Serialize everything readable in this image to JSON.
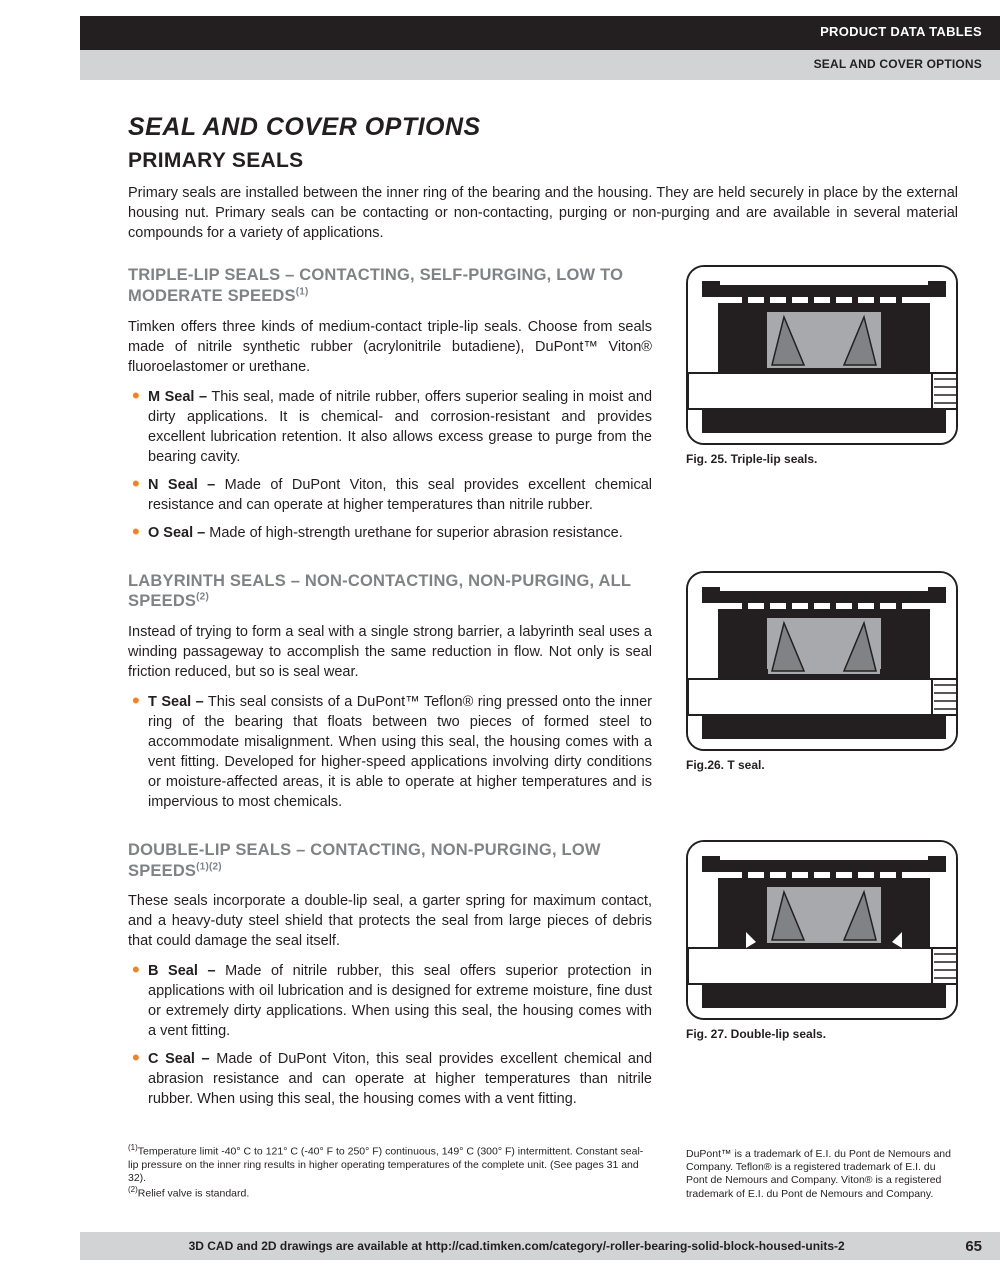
{
  "header": {
    "black_bar": "PRODUCT DATA TABLES",
    "gray_bar": "SEAL AND COVER OPTIONS"
  },
  "title": "SEAL AND COVER OPTIONS",
  "subtitle": "PRIMARY SEALS",
  "intro": "Primary seals are installed between the inner ring of the bearing and the housing. They are held securely in place by the external housing nut. Primary seals can be contacting or non-contacting, purging or non-purging and are available in several material compounds for a variety of applications.",
  "sections": [
    {
      "heading": "TRIPLE-LIP SEALS – CONTACTING, SELF-PURGING, LOW TO MODERATE SPEEDS",
      "heading_sup": "(1)",
      "para": "Timken offers three kinds of medium-contact triple-lip seals. Choose from seals made of nitrile synthetic rubber (acrylonitrile butadiene), DuPont™ Viton® fluoroelastomer or urethane.",
      "bullets": [
        {
          "label": "M Seal –",
          "text": " This seal, made of nitrile rubber, offers superior sealing in moist and dirty applications. It is chemical- and corrosion-resistant and provides excellent lubrication retention. It also allows excess grease to purge from the bearing cavity."
        },
        {
          "label": "N Seal –",
          "text": " Made of DuPont Viton, this seal provides excellent chemical resistance and can operate at higher temperatures than nitrile rubber."
        },
        {
          "label": "O Seal –",
          "text": " Made of high-strength urethane for superior abrasion resistance."
        }
      ],
      "fig_caption": "Fig. 25. Triple-lip seals."
    },
    {
      "heading": "LABYRINTH SEALS – NON-CONTACTING, NON-PURGING, ALL SPEEDS",
      "heading_sup": "(2)",
      "para": "Instead of trying to form a seal with a single strong barrier, a labyrinth seal uses a winding passageway to accomplish the same reduction in flow. Not only is seal friction reduced, but so is seal wear.",
      "bullets": [
        {
          "label": "T Seal –",
          "text": " This seal consists of a DuPont™ Teflon® ring pressed onto the inner ring of the bearing that floats between two pieces of formed steel to accommodate misalignment. When using this seal, the housing comes with a vent fitting. Developed for higher-speed applications involving dirty conditions or moisture-affected areas, it is able to operate at higher temperatures and is impervious to most chemicals."
        }
      ],
      "fig_caption": "Fig.26. T seal."
    },
    {
      "heading": "DOUBLE-LIP SEALS – CONTACTING, NON-PURGING, LOW SPEEDS",
      "heading_sup": "(1)(2)",
      "para": "These seals incorporate a double-lip seal, a garter spring for maximum contact, and a heavy-duty steel shield that protects the seal from large pieces of debris that could damage the seal itself.",
      "bullets": [
        {
          "label": "B Seal –",
          "text": " Made of nitrile rubber, this seal offers superior protection in applications with oil lubrication and is designed for extreme moisture, fine dust or extremely dirty applications. When using this seal, the housing comes with a vent fitting."
        },
        {
          "label": "C Seal –",
          "text": " Made of DuPont Viton, this seal provides excellent chemical and abrasion resistance and can operate at higher temperatures than nitrile rubber. When using this seal, the housing comes with a vent fitting."
        }
      ],
      "fig_caption": "Fig. 27. Double-lip seals."
    }
  ],
  "footnotes": [
    {
      "sup": "(1)",
      "text": "Temperature limit -40° C to 121° C (-40° F to 250° F) continuous, 149° C (300° F) intermittent. Constant seal-lip pressure on the inner ring results in higher operating temperatures of the complete unit. (See pages 31 and 32)."
    },
    {
      "sup": "(2)",
      "text": "Relief valve is standard."
    }
  ],
  "trademark": "DuPont™ is a trademark of E.I. du Pont de Nemours and Company. Teflon® is a registered trademark of E.I. du Pont de Nemours and Company. Viton® is a registered trademark of E.I. du Pont de Nemours and Company.",
  "footer": {
    "text": "3D CAD and 2D drawings are available at http://cad.timken.com/category/-roller-bearing-solid-block-housed-units-2",
    "page": "65"
  },
  "accent_color": "#f58220",
  "gray_text": "#808285"
}
